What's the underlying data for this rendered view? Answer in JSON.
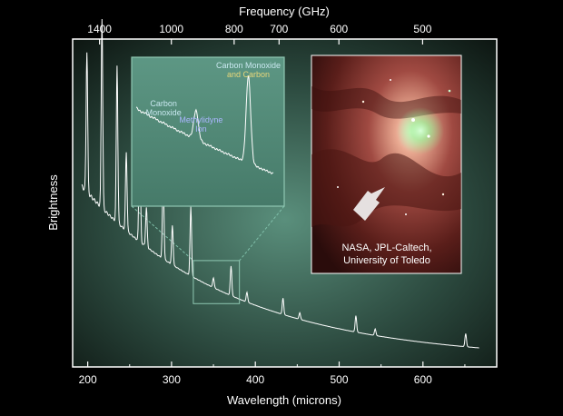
{
  "chart_data": {
    "type": "line",
    "title": "",
    "xlabel": "Wavelength (microns)",
    "ylabel": "Brightness",
    "x2label": "Frequency (GHz)",
    "xlim": [
      182,
      688
    ],
    "x_ticks": [
      200,
      300,
      400,
      500,
      600
    ],
    "x2_ticks": [
      "1400",
      "1000",
      "800",
      "700",
      "600",
      "500"
    ],
    "x2_tick_wavelengths": [
      214.1,
      299.8,
      374.7,
      428.3,
      499.7,
      599.6
    ],
    "ylim": [
      0,
      100
    ],
    "grid": false,
    "continuum": {
      "wavelength_scale": 180,
      "amplitude": 54,
      "floor": 2
    },
    "series": [
      {
        "lines": [
          {
            "wavelength": 199,
            "height": 43
          },
          {
            "wavelength": 217,
            "height": 58
          },
          {
            "wavelength": 235,
            "height": 48
          },
          {
            "wavelength": 246,
            "height": 24
          },
          {
            "wavelength": 262,
            "height": 39
          },
          {
            "wavelength": 270,
            "height": 12
          },
          {
            "wavelength": 290,
            "height": 27
          },
          {
            "wavelength": 301,
            "height": 12
          },
          {
            "wavelength": 323,
            "height": 21
          },
          {
            "wavelength": 350,
            "height": 3
          },
          {
            "wavelength": 371,
            "height": 9
          },
          {
            "wavelength": 390,
            "height": 3
          },
          {
            "wavelength": 433,
            "height": 5
          },
          {
            "wavelength": 453,
            "height": 2
          },
          {
            "wavelength": 520,
            "height": 5
          },
          {
            "wavelength": 543,
            "height": 2
          },
          {
            "wavelength": 651,
            "height": 4
          }
        ]
      }
    ],
    "inset": {
      "zoom_range": [
        326,
        381
      ],
      "annotations": [
        {
          "lines": [
            "Carbon",
            "Monoxide"
          ],
          "color": "#c9e8f0",
          "wavelength": 337
        },
        {
          "lines": [
            "Methylidyne",
            "Ion"
          ],
          "color": "#aab6ff",
          "wavelength": 352
        },
        {
          "lines": [
            "Carbon Monoxide"
          ],
          "color": "#c9e8f0",
          "wavelength": 371
        },
        {
          "lines": [
            "and Carbon"
          ],
          "color": "#e8d77a",
          "wavelength": 371
        }
      ]
    }
  },
  "photo": {
    "caption_lines": [
      "NASA, JPL-Caltech,",
      "University of Toledo"
    ],
    "nebula_colors": [
      "#3a1412",
      "#7a3530",
      "#b06058",
      "#d8a090",
      "#8cff9a"
    ]
  },
  "colors": {
    "background": "#000000",
    "plot_center": "#5a8f7c",
    "plot_edge": "#0c1410",
    "axis": "#ffffff",
    "curve": "#ffffff",
    "inset_border": "#8fc7b2",
    "zoom_lines": "#7fbfa9"
  }
}
